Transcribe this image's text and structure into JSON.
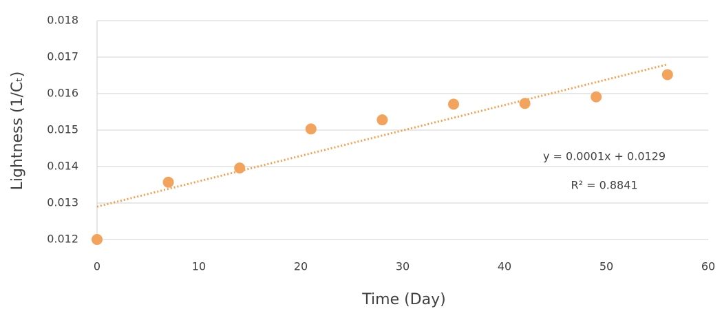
{
  "chart_data": {
    "type": "scatter",
    "x_label": "Time (Day)",
    "y_label": "Lightness (1/Cₜ)",
    "x": [
      0,
      7,
      14,
      21,
      28,
      35,
      42,
      49,
      56
    ],
    "series": [
      {
        "color": "#f2a35e",
        "values": [
          0.012,
          0.01357,
          0.01396,
          0.01503,
          0.01528,
          0.01571,
          0.01573,
          0.01591,
          0.01652
        ]
      }
    ],
    "trendline": {
      "x": [
        0,
        56
      ],
      "y": [
        0.0129,
        0.0168
      ],
      "color": "#f0a050"
    },
    "annotations": [
      "y = 0.0001x + 0.0129",
      "R² = 0.8841"
    ],
    "xlim": [
      0,
      60
    ],
    "xticks": [
      0,
      10,
      20,
      30,
      40,
      50,
      60
    ],
    "ylim": [
      0.012,
      0.018
    ],
    "yticks": [
      0.012,
      0.013,
      0.014,
      0.015,
      0.016,
      0.017,
      0.018
    ],
    "grid": true
  }
}
